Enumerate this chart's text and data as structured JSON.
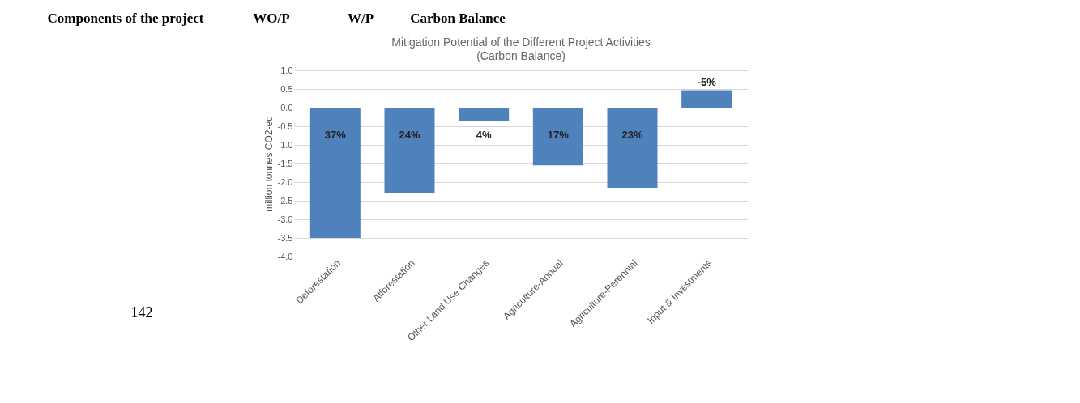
{
  "chart_data": {
    "type": "bar",
    "title": "Mitigation Potential of the Different Project Activities",
    "subtitle": "(Carbon Balance)",
    "ylabel": "million tonnes CO2-eq",
    "categories": [
      "Deforestation",
      "Afforestation",
      "Other Land Use Changes",
      "Agriculture-Annual",
      "Agriculture-Perennial",
      "Input & Investments"
    ],
    "values": [
      -3.5,
      -2.3,
      -0.37,
      -1.55,
      -2.15,
      0.47
    ],
    "color": "#4f81bd",
    "ylim": [
      -4.0,
      1.0
    ],
    "yticks": [
      {
        "value": 1.0,
        "label": "1.0"
      },
      0.5,
      {
        "value": 0.0,
        "label": "0.0"
      },
      -0.5,
      {
        "value": -1.0,
        "label": "-1.0"
      },
      -1.5,
      {
        "value": -2.0,
        "label": "-2.0"
      },
      -2.5,
      {
        "value": -3.0,
        "label": "-3.0"
      },
      -3.5,
      {
        "value": -4.0,
        "label": "-4.0"
      }
    ],
    "grid": "y",
    "annotations": [
      "Components of the project",
      "WO/P",
      "W/P",
      "Carbon Balance",
      "142",
      "37%",
      "24%",
      "4%",
      "17%",
      "23%",
      "-5%"
    ]
  }
}
